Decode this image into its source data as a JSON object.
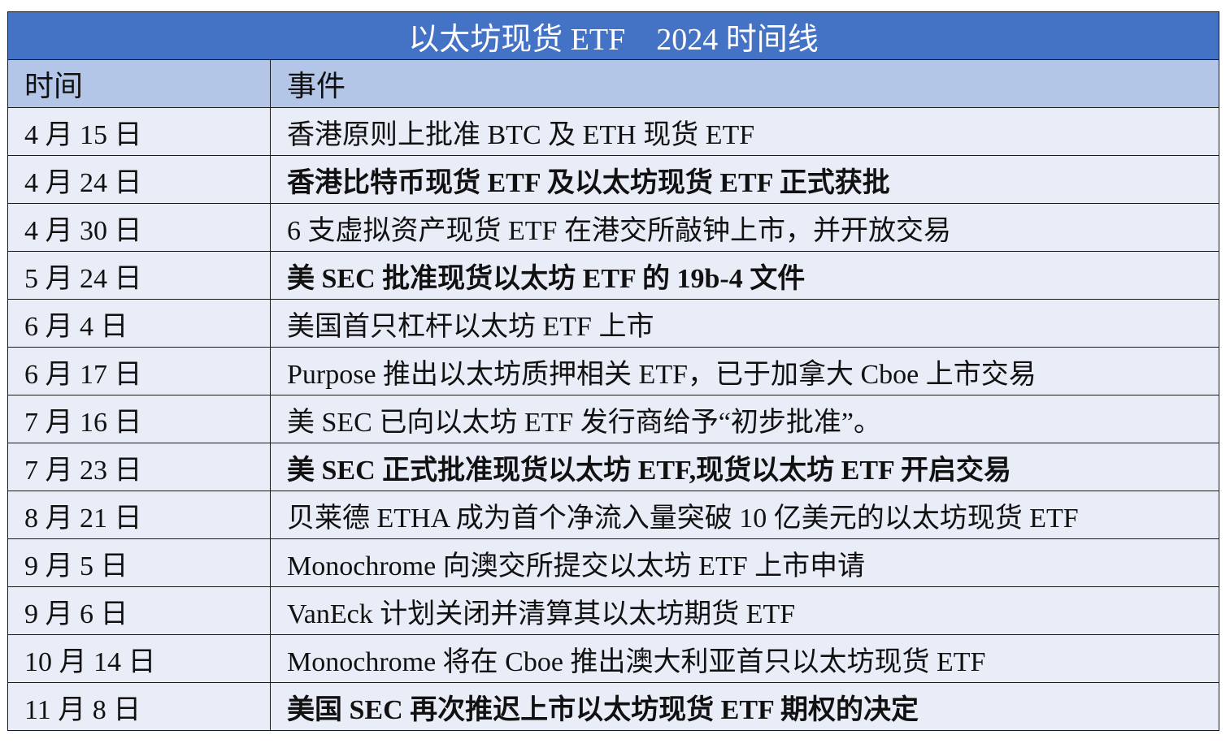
{
  "title": "以太坊现货 ETF　2024 时间线",
  "colors": {
    "title_bg": "#4472c4",
    "header_bg": "#b4c6e7",
    "row_bg": "#e9edf7"
  },
  "headers": {
    "date": "时间",
    "event": "事件"
  },
  "rows": [
    {
      "date": "4 月 15 日",
      "event": "香港原则上批准 BTC 及 ETH 现货 ETF",
      "bold": false
    },
    {
      "date": "4 月 24 日",
      "event": "香港比特币现货 ETF 及以太坊现货 ETF 正式获批",
      "bold": true
    },
    {
      "date": "4 月 30 日",
      "event": "6 支虚拟资产现货 ETF 在港交所敲钟上市，并开放交易",
      "bold": false
    },
    {
      "date": "5 月 24 日",
      "event": "美 SEC 批准现货以太坊 ETF 的 19b-4 文件",
      "bold": true
    },
    {
      "date": "6 月 4 日",
      "event": "美国首只杠杆以太坊 ETF 上市",
      "bold": false
    },
    {
      "date": "6 月 17 日",
      "event": "Purpose 推出以太坊质押相关 ETF，已于加拿大 Cboe 上市交易",
      "bold": false
    },
    {
      "date": "7 月 16 日",
      "event": "美 SEC 已向以太坊 ETF 发行商给予“初步批准”。",
      "bold": false
    },
    {
      "date": "7 月 23 日",
      "event": "美 SEC 正式批准现货以太坊 ETF,现货以太坊 ETF 开启交易",
      "bold": true
    },
    {
      "date": "8 月 21 日",
      "event": "贝莱德 ETHA 成为首个净流入量突破 10 亿美元的以太坊现货 ETF",
      "bold": false
    },
    {
      "date": "9 月 5 日",
      "event": "Monochrome 向澳交所提交以太坊 ETF 上市申请",
      "bold": false
    },
    {
      "date": "9 月 6 日",
      "event": "VanEck 计划关闭并清算其以太坊期货 ETF",
      "bold": false
    },
    {
      "date": "10 月 14 日",
      "event": "Monochrome 将在 Cboe 推出澳大利亚首只以太坊现货 ETF",
      "bold": false
    },
    {
      "date": "11 月 8 日",
      "event": "美国 SEC 再次推迟上市以太坊现货 ETF 期权的决定",
      "bold": true
    }
  ]
}
